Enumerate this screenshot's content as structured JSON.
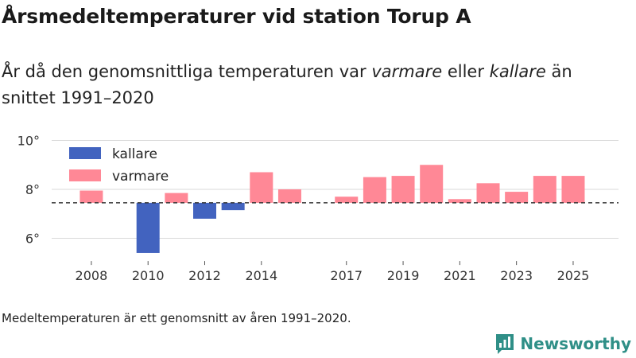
{
  "title": "Årsmedeltemperaturer vid station Torup A",
  "subtitle": {
    "part1": "År då den genomsnittliga temperaturen var ",
    "warm": "varmare",
    "part2": " eller ",
    "cold": "kallare",
    "part3": " än snittet 1991–2020"
  },
  "footnote": "Medeltemperaturen är ett genomsnitt av åren 1991–2020.",
  "brand": "Newsworthy",
  "colors": {
    "kallare": "#4263bf",
    "varmare": "#ff8896",
    "brand": "#2f8f87"
  },
  "chart_data": {
    "type": "bar",
    "baseline": 7.45,
    "ylim": [
      5.2,
      10.3
    ],
    "yticks": [
      6,
      8,
      10
    ],
    "ytick_labels": [
      "6°",
      "8°",
      "10°"
    ],
    "xticks": [
      2008,
      2010,
      2012,
      2014,
      2017,
      2019,
      2021,
      2023,
      2025
    ],
    "legend": {
      "position": "top-left",
      "items": [
        {
          "key": "kallare",
          "label": "kallare"
        },
        {
          "key": "varmare",
          "label": "varmare"
        }
      ]
    },
    "bars": [
      {
        "year": 2008,
        "value": 7.95
      },
      {
        "year": 2010,
        "value": 5.4
      },
      {
        "year": 2011,
        "value": 7.85
      },
      {
        "year": 2012,
        "value": 6.8
      },
      {
        "year": 2013,
        "value": 7.15
      },
      {
        "year": 2014,
        "value": 8.7
      },
      {
        "year": 2015,
        "value": 8.0
      },
      {
        "year": 2017,
        "value": 7.7
      },
      {
        "year": 2018,
        "value": 8.5
      },
      {
        "year": 2019,
        "value": 8.55
      },
      {
        "year": 2020,
        "value": 9.0
      },
      {
        "year": 2021,
        "value": 7.6
      },
      {
        "year": 2022,
        "value": 8.25
      },
      {
        "year": 2023,
        "value": 7.9
      },
      {
        "year": 2024,
        "value": 8.55
      },
      {
        "year": 2025,
        "value": 8.55
      }
    ]
  }
}
